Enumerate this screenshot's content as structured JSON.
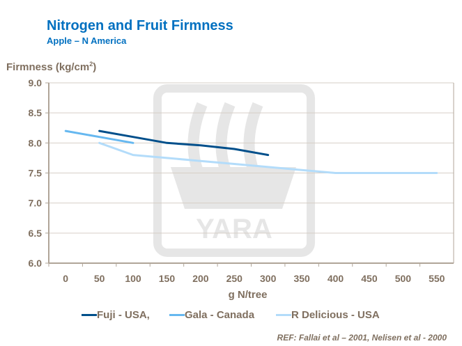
{
  "chart_data": {
    "type": "line",
    "title": "Nitrogen and Fruit Firmness",
    "subtitle": "Apple – N America",
    "xlabel": "g N/tree",
    "ylabel": "Firmness (kg/cm",
    "ylabel_sup": "2",
    "ylabel_close": ")",
    "categories": [
      "0",
      "50",
      "100",
      "150",
      "200",
      "250",
      "300",
      "350",
      "400",
      "450",
      "500",
      "550"
    ],
    "ylim": [
      6.0,
      9.0
    ],
    "yticks": [
      "6.0",
      "6.5",
      "7.0",
      "7.5",
      "8.0",
      "8.5",
      "9.0"
    ],
    "grid": "horizontal",
    "legend_position": "bottom",
    "series": [
      {
        "name": "Fuji - USA,",
        "color": "#004f8b",
        "x": [
          50,
          100,
          150,
          200,
          250,
          300
        ],
        "values": [
          8.2,
          8.1,
          8.0,
          7.96,
          7.9,
          7.8
        ]
      },
      {
        "name": "Gala - Canada",
        "color": "#66b8f0",
        "x": [
          0,
          50,
          100
        ],
        "values": [
          8.2,
          8.1,
          8.0
        ]
      },
      {
        "name": "R Delicious - USA",
        "color": "#b3dcfa",
        "x": [
          50,
          100,
          150,
          200,
          250,
          300,
          350,
          400,
          450,
          500,
          550
        ],
        "values": [
          8.0,
          7.8,
          7.75,
          7.7,
          7.65,
          7.6,
          7.55,
          7.5,
          7.5,
          7.5,
          7.5
        ]
      }
    ],
    "reference": "REF: Fallai et al – 2001, Nelisen et al - 2000"
  },
  "watermark": "YARA"
}
